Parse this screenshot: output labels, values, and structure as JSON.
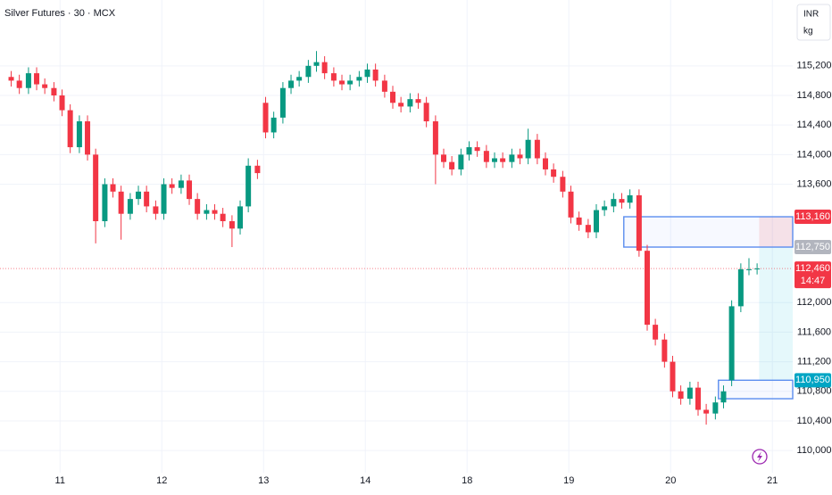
{
  "chart_data": {
    "type": "candlestick",
    "title": "Silver Futures · 30 · MCX",
    "currency": "INR",
    "unit": "kg",
    "xlim": [
      -0.59,
      7.2
    ],
    "ylim": [
      109700,
      116090
    ],
    "xticks": [
      {
        "value": 0,
        "label": "11"
      },
      {
        "value": 1,
        "label": "12"
      },
      {
        "value": 2,
        "label": "13"
      },
      {
        "value": 3,
        "label": "14"
      },
      {
        "value": 4,
        "label": "18"
      },
      {
        "value": 5,
        "label": "19"
      },
      {
        "value": 6,
        "label": "20"
      },
      {
        "value": 7,
        "label": "21"
      }
    ],
    "yticks": [
      {
        "value": 110000,
        "label": "110,000"
      },
      {
        "value": 110400,
        "label": "110,400"
      },
      {
        "value": 110800,
        "label": "110,800"
      },
      {
        "value": 111200,
        "label": "111,200"
      },
      {
        "value": 111600,
        "label": "111,600"
      },
      {
        "value": 112000,
        "label": "112,000"
      },
      {
        "value": 113600,
        "label": "113,600"
      },
      {
        "value": 114000,
        "label": "114,000"
      },
      {
        "value": 114400,
        "label": "114,400"
      },
      {
        "value": 114800,
        "label": "114,800"
      },
      {
        "value": 115200,
        "label": "115,200"
      }
    ],
    "grid": true,
    "up_color": "#089981",
    "down_color": "#f23645",
    "x": [
      -0.48,
      -0.4,
      -0.31,
      -0.23,
      -0.15,
      -0.06,
      0.02,
      0.1,
      0.19,
      0.27,
      0.35,
      0.44,
      0.52,
      0.6,
      0.69,
      0.77,
      0.85,
      0.94,
      1.02,
      1.1,
      1.19,
      1.27,
      1.35,
      1.44,
      1.52,
      1.6,
      1.69,
      1.77,
      1.85,
      1.94,
      2.02,
      2.1,
      2.19,
      2.27,
      2.35,
      2.44,
      2.52,
      2.6,
      2.69,
      2.77,
      2.85,
      2.94,
      3.02,
      3.1,
      3.19,
      3.27,
      3.35,
      3.44,
      3.52,
      3.6,
      3.69,
      3.77,
      3.85,
      3.94,
      4.02,
      4.1,
      4.19,
      4.27,
      4.35,
      4.44,
      4.52,
      4.6,
      4.69,
      4.77,
      4.85,
      4.94,
      5.02,
      5.1,
      5.19,
      5.27,
      5.35,
      5.44,
      5.52,
      5.6,
      5.69,
      5.77,
      5.85,
      5.94,
      6.02,
      6.1,
      6.19,
      6.27,
      6.35,
      6.44,
      6.52,
      6.6,
      6.69,
      6.77,
      6.85
    ],
    "open": [
      115050,
      115000,
      114900,
      115100,
      114950,
      114900,
      114800,
      114600,
      114100,
      114450,
      114000,
      113100,
      113600,
      113500,
      113200,
      113400,
      113500,
      113300,
      113200,
      113600,
      113550,
      113650,
      113400,
      113200,
      113250,
      113200,
      113100,
      113000,
      113300,
      113850,
      114700,
      114300,
      114500,
      114900,
      115000,
      115050,
      115200,
      115250,
      115100,
      115000,
      114950,
      115000,
      115050,
      115150,
      115000,
      114850,
      114700,
      114650,
      114750,
      114700,
      114450,
      114000,
      113900,
      113800,
      114000,
      114100,
      114050,
      113900,
      113950,
      113900,
      114000,
      113950,
      114200,
      113950,
      113800,
      113700,
      113500,
      113150,
      113050,
      112950,
      113250,
      113300,
      113400,
      113350,
      113450,
      112700,
      111700,
      111500,
      111200,
      110800,
      110700,
      110850,
      110550,
      110500,
      110650,
      110950,
      111950,
      112450,
      112450
    ],
    "high": [
      115130,
      115080,
      115180,
      115180,
      115030,
      114980,
      114880,
      114680,
      114530,
      114530,
      114080,
      113680,
      113680,
      113580,
      113480,
      113580,
      113580,
      113380,
      113680,
      113680,
      113730,
      113730,
      113480,
      113330,
      113330,
      113280,
      113180,
      113380,
      113950,
      113930,
      114780,
      114580,
      114980,
      115080,
      115130,
      115280,
      115400,
      115330,
      115180,
      115080,
      115080,
      115130,
      115230,
      115230,
      115080,
      114930,
      114780,
      114830,
      114830,
      114780,
      114530,
      114080,
      113980,
      114080,
      114180,
      114180,
      114130,
      114030,
      114030,
      114080,
      114080,
      114350,
      114280,
      114030,
      113880,
      113780,
      113580,
      113230,
      113130,
      113330,
      113380,
      113480,
      113480,
      113530,
      113530,
      112780,
      111780,
      111580,
      111280,
      110880,
      110930,
      110930,
      110630,
      110730,
      110880,
      112030,
      112530,
      112600,
      112530
    ],
    "low": [
      114920,
      114820,
      114820,
      114870,
      114820,
      114720,
      114520,
      114020,
      114020,
      113920,
      112800,
      113020,
      113420,
      112850,
      113120,
      113320,
      113220,
      113120,
      113120,
      113470,
      113470,
      113320,
      113120,
      113120,
      113120,
      113020,
      112750,
      112920,
      113220,
      113670,
      114220,
      114220,
      114420,
      114820,
      114920,
      114970,
      115120,
      115020,
      114920,
      114870,
      114870,
      114920,
      114970,
      114920,
      114770,
      114620,
      114570,
      114570,
      114620,
      114370,
      113600,
      113820,
      113720,
      113720,
      113920,
      113970,
      113820,
      113820,
      113820,
      113820,
      113870,
      113870,
      113870,
      113720,
      113620,
      113420,
      113070,
      112970,
      112870,
      112870,
      113170,
      113220,
      113270,
      113270,
      112620,
      111620,
      111420,
      111120,
      110720,
      110620,
      110620,
      110470,
      110350,
      110420,
      110570,
      110870,
      111870,
      112370,
      112380
    ],
    "close": [
      115000,
      114900,
      115100,
      114950,
      114900,
      114800,
      114600,
      114100,
      114450,
      114000,
      113100,
      113600,
      113500,
      113200,
      113400,
      113500,
      113300,
      113200,
      113600,
      113550,
      113650,
      113400,
      113200,
      113250,
      113200,
      113100,
      113000,
      113300,
      113850,
      113750,
      114300,
      114500,
      114900,
      115000,
      115050,
      115200,
      115250,
      115100,
      115000,
      114950,
      115000,
      115050,
      115150,
      115000,
      114850,
      114700,
      114650,
      114750,
      114700,
      114450,
      114000,
      113900,
      113800,
      114000,
      114100,
      114050,
      113900,
      113950,
      113900,
      114000,
      113950,
      114200,
      113950,
      113800,
      113700,
      113500,
      113150,
      113050,
      112950,
      113250,
      113300,
      113400,
      113350,
      113450,
      112700,
      111700,
      111500,
      111200,
      110800,
      110700,
      110850,
      110550,
      110500,
      110650,
      110800,
      111950,
      112450,
      112450,
      112460
    ],
    "zones": [
      {
        "x_start": 5.54,
        "top": 113160,
        "bottom": 112750
      },
      {
        "x_start": 6.47,
        "top": 110950,
        "bottom": 110700
      }
    ],
    "position": {
      "x_start": 6.87,
      "stop": 113160,
      "entry": 112750,
      "target": 110950
    },
    "last_price": 112460,
    "price_labels": [
      {
        "value": 113160,
        "label": "113,160",
        "color": "#f23645"
      },
      {
        "value": 112750,
        "label": "112,750",
        "color": "#b2b5be"
      },
      {
        "value": 112460,
        "label": "112,460",
        "color": "#f23645",
        "countdown": "14:47"
      },
      {
        "value": 110950,
        "label": "110,950",
        "color": "#00a5c4"
      }
    ]
  }
}
